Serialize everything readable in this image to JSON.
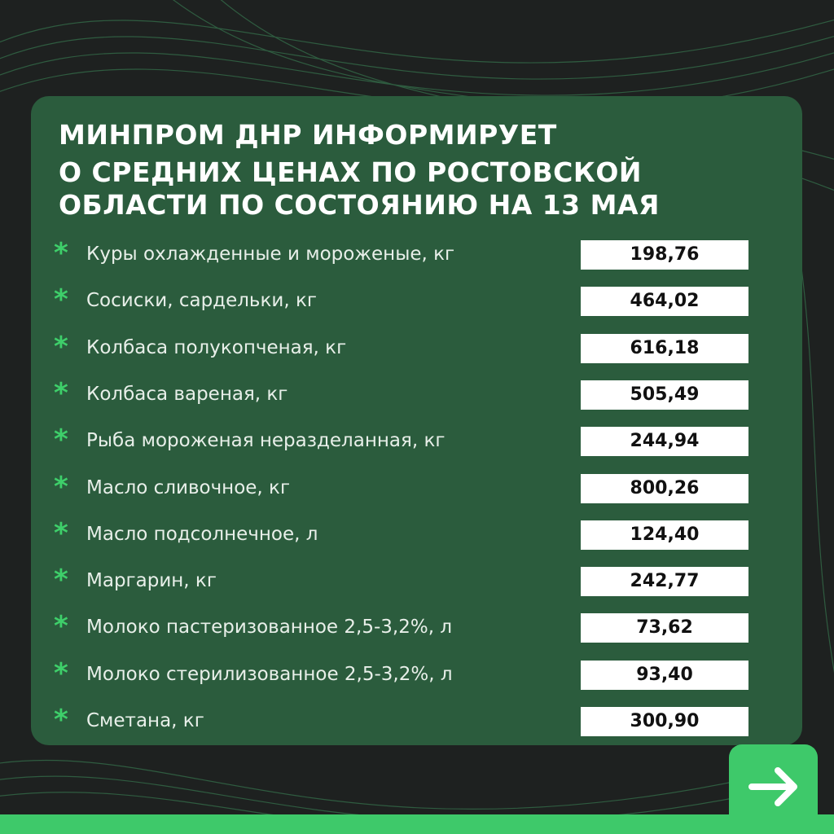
{
  "header": {
    "title_lines": [
      "МИНПРОМ ДНР ИНФОРМИРУЕТ",
      "О СРЕДНИХ ЦЕНАХ ПО РОСТОВСКОЙ",
      "ОБЛАСТИ ПО СОСТОЯНИЮ НА 13 МАЯ"
    ]
  },
  "bullet": "*",
  "items": [
    {
      "label": "Куры охлажденные и мороженые, кг",
      "price": "198,76"
    },
    {
      "label": "Сосиски, сардельки, кг",
      "price": "464,02"
    },
    {
      "label": "Колбаса полукопченая, кг",
      "price": "616,18"
    },
    {
      "label": "Колбаса вареная, кг",
      "price": "505,49"
    },
    {
      "label": "Рыба мороженая неразделанная, кг",
      "price": "244,94"
    },
    {
      "label": "Масло сливочное, кг",
      "price": "800,26"
    },
    {
      "label": "Масло подсолнечное, л",
      "price": "124,40"
    },
    {
      "label": "Маргарин, кг",
      "price": "242,77"
    },
    {
      "label": "Молоко пастеризованное 2,5-3,2%, л",
      "price": "73,62"
    },
    {
      "label": "Молоко стерилизованное 2,5-3,2%, л",
      "price": "93,40"
    },
    {
      "label": "Сметана, кг",
      "price": "300,90"
    }
  ]
}
